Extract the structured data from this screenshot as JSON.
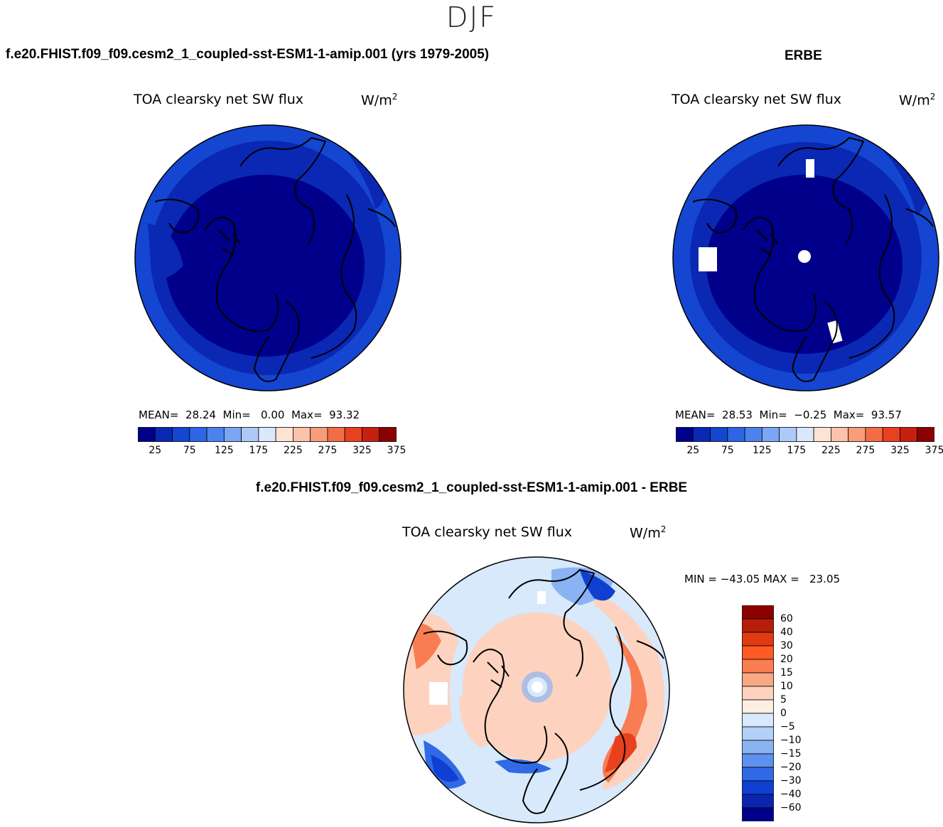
{
  "season": "DJF",
  "panels": {
    "model": {
      "title": "f.e20.FHIST.f09_f09.cesm2_1_coupled-sst-ESM1-1-amip.001 (yrs 1979-2005)",
      "variable": "TOA clearsky net SW flux",
      "units_base": "W/m",
      "units_exp": "2",
      "stats": {
        "mean_label": "MEAN=",
        "mean": "28.24",
        "min_label": "Min=",
        "min": "0.00",
        "max_label": "Max=",
        "max": "93.32"
      }
    },
    "obs": {
      "title": "ERBE",
      "variable": "TOA clearsky net SW flux",
      "units_base": "W/m",
      "units_exp": "2",
      "stats": {
        "mean_label": "MEAN=",
        "mean": "28.53",
        "min_label": "Min=",
        "min": "−0.25",
        "max_label": "Max=",
        "max": "93.57"
      }
    },
    "diff": {
      "title": "f.e20.FHIST.f09_f09.cesm2_1_coupled-sst-ESM1-1-amip.001 - ERBE",
      "variable": "TOA clearsky net SW flux",
      "units_base": "W/m",
      "units_exp": "2",
      "minmax": "MIN = −43.05 MAX =   23.05"
    }
  },
  "colorbar_abs": {
    "colors": [
      "#00008b",
      "#0a28b4",
      "#1446d2",
      "#2e64e6",
      "#4d82ee",
      "#7ba6f3",
      "#adc9f8",
      "#d9e8fb",
      "#fde3d3",
      "#fbc3aa",
      "#f99c78",
      "#f36c45",
      "#e8411f",
      "#c52010",
      "#8b0000"
    ],
    "tick_labels": [
      "25",
      "75",
      "125",
      "175",
      "225",
      "275",
      "325",
      "375"
    ]
  },
  "colorbar_diff": {
    "colors": [
      "#8b0000",
      "#b81c0a",
      "#e03a10",
      "#ff5a22",
      "#f97d52",
      "#f9a884",
      "#fdd3bf",
      "#fdeee2",
      "#d7e9fb",
      "#b3d0f8",
      "#8ab3f3",
      "#5e90ee",
      "#306ae6",
      "#1040d2",
      "#0a24b0",
      "#00008b"
    ],
    "tick_labels": [
      "60",
      "40",
      "30",
      "20",
      "15",
      "10",
      "5",
      "0",
      "−5",
      "−10",
      "−15",
      "−20",
      "−30",
      "−40",
      "−60"
    ]
  },
  "map_colors": {
    "abs_inner": "#00008b",
    "abs_mid": "#0a28b4",
    "abs_outer": "#1446d2",
    "diff_base": "#d7e9fb",
    "diff_warm": "#fdd3bf",
    "diff_warm2": "#f97d52",
    "diff_hot": "#e8411f",
    "diff_cool": "#8ab3f3",
    "diff_cold": "#306ae6",
    "diff_colder": "#1040d2"
  }
}
